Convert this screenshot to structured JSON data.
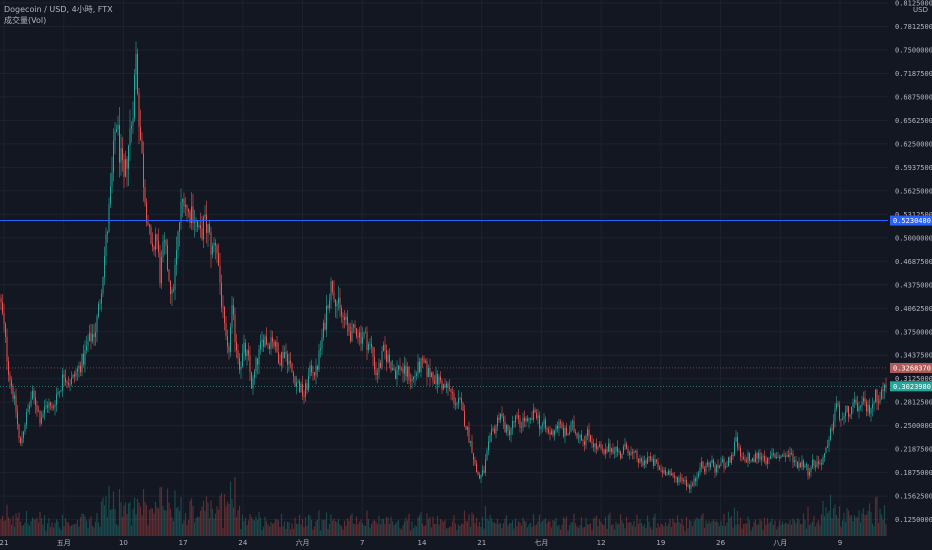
{
  "header": {
    "symbol_line": "Dogecoin / USD, 4小時, FTX",
    "volume_label": "成交量(Vol)"
  },
  "price_unit": "USD",
  "colors": {
    "background": "#131722",
    "grid": "#1e222d",
    "up": "#26a69a",
    "down": "#ef5350",
    "hline": "#2962ff",
    "last_price_tag": "#26a69a",
    "prev_price_tag": "#b05b5b"
  },
  "chart_data": {
    "type": "candlestick",
    "ylim": [
      0.1125,
      0.8125
    ],
    "y_ticks": [
      "0.8125000",
      "0.7812500",
      "0.7500000",
      "0.7187500",
      "0.6875000",
      "0.6562500",
      "0.6250000",
      "0.5937500",
      "0.5625000",
      "0.5312500",
      "0.5000000",
      "0.4687500",
      "0.4375000",
      "0.4062500",
      "0.3750000",
      "0.3437500",
      "0.3125000",
      "0.2812500",
      "0.2500000",
      "0.2187500",
      "0.1875000",
      "0.1562500",
      "0.1250000"
    ],
    "x_ticks": [
      "21",
      "五月",
      "10",
      "17",
      "24",
      "六月",
      "7",
      "14",
      "21",
      "七月",
      "12",
      "19",
      "26",
      "八月",
      "9"
    ],
    "horizontal_line": {
      "value": 0.523,
      "label": "0.5230480"
    },
    "price_tags": [
      {
        "value": 0.3268,
        "label": "0.3268370",
        "color": "#b05b5b"
      },
      {
        "value": 0.3024,
        "label": "0.3023980",
        "color": "#26a69a"
      }
    ],
    "price_path": [
      [
        0,
        0.42
      ],
      [
        4,
        0.38
      ],
      [
        8,
        0.33
      ],
      [
        12,
        0.3
      ],
      [
        16,
        0.27
      ],
      [
        20,
        0.22
      ],
      [
        24,
        0.25
      ],
      [
        28,
        0.27
      ],
      [
        32,
        0.29
      ],
      [
        36,
        0.28
      ],
      [
        40,
        0.26
      ],
      [
        44,
        0.27
      ],
      [
        48,
        0.28
      ],
      [
        52,
        0.27
      ],
      [
        56,
        0.29
      ],
      [
        60,
        0.3
      ],
      [
        64,
        0.32
      ],
      [
        68,
        0.31
      ],
      [
        72,
        0.31
      ],
      [
        76,
        0.32
      ],
      [
        80,
        0.33
      ],
      [
        84,
        0.34
      ],
      [
        88,
        0.36
      ],
      [
        92,
        0.37
      ],
      [
        96,
        0.38
      ],
      [
        100,
        0.42
      ],
      [
        104,
        0.47
      ],
      [
        108,
        0.52
      ],
      [
        112,
        0.58
      ],
      [
        116,
        0.66
      ],
      [
        120,
        0.61
      ],
      [
        124,
        0.57
      ],
      [
        128,
        0.62
      ],
      [
        132,
        0.66
      ],
      [
        136,
        0.74
      ],
      [
        140,
        0.64
      ],
      [
        144,
        0.57
      ],
      [
        148,
        0.52
      ],
      [
        152,
        0.47
      ],
      [
        156,
        0.51
      ],
      [
        160,
        0.45
      ],
      [
        164,
        0.49
      ],
      [
        168,
        0.46
      ],
      [
        172,
        0.42
      ],
      [
        176,
        0.47
      ],
      [
        180,
        0.53
      ],
      [
        184,
        0.56
      ],
      [
        188,
        0.53
      ],
      [
        192,
        0.54
      ],
      [
        196,
        0.52
      ],
      [
        200,
        0.5
      ],
      [
        204,
        0.52
      ],
      [
        208,
        0.51
      ],
      [
        212,
        0.48
      ],
      [
        216,
        0.5
      ],
      [
        220,
        0.44
      ],
      [
        224,
        0.38
      ],
      [
        228,
        0.34
      ],
      [
        232,
        0.4
      ],
      [
        236,
        0.36
      ],
      [
        240,
        0.33
      ],
      [
        244,
        0.35
      ],
      [
        248,
        0.34
      ],
      [
        252,
        0.3
      ],
      [
        256,
        0.33
      ],
      [
        260,
        0.35
      ],
      [
        264,
        0.37
      ],
      [
        268,
        0.36
      ],
      [
        272,
        0.37
      ],
      [
        276,
        0.35
      ],
      [
        280,
        0.34
      ],
      [
        284,
        0.35
      ],
      [
        288,
        0.34
      ],
      [
        292,
        0.32
      ],
      [
        296,
        0.31
      ],
      [
        300,
        0.3
      ],
      [
        304,
        0.29
      ],
      [
        308,
        0.31
      ],
      [
        312,
        0.33
      ],
      [
        316,
        0.32
      ],
      [
        320,
        0.35
      ],
      [
        324,
        0.38
      ],
      [
        328,
        0.42
      ],
      [
        332,
        0.44
      ],
      [
        336,
        0.42
      ],
      [
        340,
        0.4
      ],
      [
        344,
        0.39
      ],
      [
        348,
        0.38
      ],
      [
        352,
        0.37
      ],
      [
        356,
        0.38
      ],
      [
        360,
        0.37
      ],
      [
        364,
        0.37
      ],
      [
        368,
        0.36
      ],
      [
        372,
        0.35
      ],
      [
        376,
        0.32
      ],
      [
        380,
        0.33
      ],
      [
        384,
        0.35
      ],
      [
        388,
        0.34
      ],
      [
        392,
        0.33
      ],
      [
        396,
        0.32
      ],
      [
        400,
        0.33
      ],
      [
        404,
        0.32
      ],
      [
        408,
        0.32
      ],
      [
        412,
        0.31
      ],
      [
        416,
        0.32
      ],
      [
        420,
        0.33
      ],
      [
        424,
        0.33
      ],
      [
        428,
        0.32
      ],
      [
        432,
        0.32
      ],
      [
        436,
        0.31
      ],
      [
        440,
        0.31
      ],
      [
        444,
        0.3
      ],
      [
        448,
        0.3
      ],
      [
        452,
        0.29
      ],
      [
        456,
        0.28
      ],
      [
        460,
        0.28
      ],
      [
        464,
        0.26
      ],
      [
        468,
        0.24
      ],
      [
        472,
        0.22
      ],
      [
        476,
        0.19
      ],
      [
        480,
        0.18
      ],
      [
        484,
        0.19
      ],
      [
        488,
        0.22
      ],
      [
        492,
        0.24
      ],
      [
        496,
        0.25
      ],
      [
        500,
        0.27
      ],
      [
        504,
        0.25
      ],
      [
        508,
        0.24
      ],
      [
        512,
        0.25
      ],
      [
        516,
        0.26
      ],
      [
        520,
        0.25
      ],
      [
        524,
        0.26
      ],
      [
        528,
        0.25
      ],
      [
        532,
        0.26
      ],
      [
        536,
        0.27
      ],
      [
        540,
        0.25
      ],
      [
        544,
        0.25
      ],
      [
        548,
        0.24
      ],
      [
        552,
        0.24
      ],
      [
        556,
        0.25
      ],
      [
        560,
        0.25
      ],
      [
        564,
        0.24
      ],
      [
        568,
        0.24
      ],
      [
        572,
        0.25
      ],
      [
        576,
        0.24
      ],
      [
        580,
        0.24
      ],
      [
        584,
        0.23
      ],
      [
        588,
        0.24
      ],
      [
        592,
        0.23
      ],
      [
        596,
        0.22
      ],
      [
        600,
        0.22
      ],
      [
        604,
        0.21
      ],
      [
        608,
        0.22
      ],
      [
        612,
        0.22
      ],
      [
        616,
        0.22
      ],
      [
        620,
        0.21
      ],
      [
        624,
        0.22
      ],
      [
        628,
        0.22
      ],
      [
        632,
        0.21
      ],
      [
        636,
        0.21
      ],
      [
        640,
        0.2
      ],
      [
        644,
        0.2
      ],
      [
        648,
        0.21
      ],
      [
        652,
        0.2
      ],
      [
        656,
        0.2
      ],
      [
        660,
        0.19
      ],
      [
        664,
        0.19
      ],
      [
        668,
        0.19
      ],
      [
        672,
        0.18
      ],
      [
        676,
        0.18
      ],
      [
        680,
        0.18
      ],
      [
        684,
        0.18
      ],
      [
        688,
        0.17
      ],
      [
        692,
        0.17
      ],
      [
        696,
        0.18
      ],
      [
        700,
        0.2
      ],
      [
        704,
        0.19
      ],
      [
        708,
        0.2
      ],
      [
        712,
        0.2
      ],
      [
        716,
        0.19
      ],
      [
        720,
        0.2
      ],
      [
        724,
        0.2
      ],
      [
        728,
        0.2
      ],
      [
        732,
        0.21
      ],
      [
        736,
        0.23
      ],
      [
        740,
        0.21
      ],
      [
        744,
        0.2
      ],
      [
        748,
        0.21
      ],
      [
        752,
        0.2
      ],
      [
        756,
        0.21
      ],
      [
        760,
        0.21
      ],
      [
        764,
        0.21
      ],
      [
        768,
        0.2
      ],
      [
        772,
        0.21
      ],
      [
        776,
        0.21
      ],
      [
        780,
        0.21
      ],
      [
        784,
        0.21
      ],
      [
        788,
        0.21
      ],
      [
        792,
        0.21
      ],
      [
        796,
        0.2
      ],
      [
        800,
        0.2
      ],
      [
        804,
        0.2
      ],
      [
        808,
        0.19
      ],
      [
        812,
        0.2
      ],
      [
        816,
        0.2
      ],
      [
        820,
        0.2
      ],
      [
        824,
        0.21
      ],
      [
        828,
        0.22
      ],
      [
        832,
        0.25
      ],
      [
        836,
        0.28
      ],
      [
        840,
        0.26
      ],
      [
        844,
        0.26
      ],
      [
        848,
        0.27
      ],
      [
        852,
        0.27
      ],
      [
        856,
        0.28
      ],
      [
        860,
        0.27
      ],
      [
        864,
        0.28
      ],
      [
        868,
        0.27
      ],
      [
        872,
        0.28
      ],
      [
        876,
        0.29
      ],
      [
        880,
        0.29
      ],
      [
        884,
        0.3
      ],
      [
        888,
        0.3
      ]
    ]
  }
}
